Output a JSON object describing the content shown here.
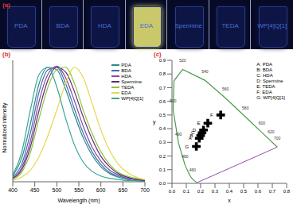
{
  "image_panel": {
    "panel_label": "(a)",
    "vials": [
      "PDA",
      "BDA",
      "HDA",
      "EDA",
      "Spermine",
      "TEDA",
      "WP[4]Q[1]"
    ],
    "colors": [
      "#0d1545",
      "#0d1545",
      "#0d1545",
      "#c9c86a",
      "#0d1545",
      "#0d1545",
      "#0d1545"
    ]
  },
  "chart_data": [
    {
      "type": "line",
      "panel_label": "(b)",
      "x_label": "Wavelength (nm)",
      "y_label": "Normalized intensity",
      "x": [
        400,
        420,
        440,
        460,
        480,
        500,
        520,
        540,
        560,
        580,
        600,
        620,
        640,
        660,
        680,
        700
      ],
      "series": [
        {
          "name": "PDA",
          "color": "#2a8a8a",
          "values": [
            0.05,
            0.2,
            0.5,
            0.85,
            0.99,
            0.97,
            0.8,
            0.58,
            0.38,
            0.23,
            0.13,
            0.07,
            0.04,
            0.02,
            0.01,
            0.01
          ]
        },
        {
          "name": "BDA",
          "color": "#3b6fb6",
          "values": [
            0.04,
            0.15,
            0.42,
            0.78,
            0.97,
            0.99,
            0.85,
            0.63,
            0.42,
            0.26,
            0.15,
            0.08,
            0.05,
            0.03,
            0.02,
            0.01
          ]
        },
        {
          "name": "HDA",
          "color": "#8a4a9c",
          "values": [
            0.03,
            0.12,
            0.35,
            0.7,
            0.93,
            1.0,
            0.9,
            0.7,
            0.48,
            0.3,
            0.18,
            0.1,
            0.06,
            0.03,
            0.02,
            0.01
          ]
        },
        {
          "name": "Spermine",
          "color": "#5b2d7a",
          "values": [
            0.03,
            0.1,
            0.3,
            0.62,
            0.88,
            0.99,
            0.95,
            0.78,
            0.56,
            0.37,
            0.22,
            0.13,
            0.07,
            0.04,
            0.02,
            0.01
          ]
        },
        {
          "name": "TEDA",
          "color": "#8dc63f",
          "values": [
            0.02,
            0.08,
            0.25,
            0.55,
            0.82,
            0.97,
            0.99,
            0.85,
            0.62,
            0.42,
            0.26,
            0.15,
            0.08,
            0.05,
            0.03,
            0.02
          ]
        },
        {
          "name": "EDA",
          "color": "#e6d84a",
          "values": [
            0.01,
            0.04,
            0.1,
            0.22,
            0.4,
            0.62,
            0.85,
            0.99,
            0.9,
            0.68,
            0.45,
            0.27,
            0.15,
            0.08,
            0.04,
            0.02
          ]
        },
        {
          "name": "WP[4]Q[1]",
          "color": "#3aa597",
          "values": [
            0.06,
            0.25,
            0.62,
            0.93,
            0.99,
            0.82,
            0.55,
            0.32,
            0.17,
            0.09,
            0.05,
            0.03,
            0.02,
            0.01,
            0.01,
            0.0
          ]
        }
      ],
      "xlim": [
        400,
        700
      ],
      "xticks": [
        400,
        450,
        500,
        550,
        600,
        650,
        700
      ],
      "ylim": [
        0,
        1.05
      ],
      "tick_labels": "x",
      "legend": "upper right"
    },
    {
      "type": "scatter",
      "panel_label": "(c)",
      "x_label": "x",
      "y_label": "y",
      "xlim": [
        0,
        0.8
      ],
      "xticks": [
        {
          "value": 0,
          "label": "0.0"
        },
        {
          "value": 0.1,
          "label": "0.1"
        },
        {
          "value": 0.2,
          "label": "0.2"
        },
        {
          "value": 0.3,
          "label": "0.3"
        },
        {
          "value": 0.4,
          "label": "0.4"
        },
        {
          "value": 0.5,
          "label": "0.5"
        },
        {
          "value": 0.6,
          "label": "0.6"
        },
        {
          "value": 0.7,
          "label": "0.7"
        },
        {
          "value": 0.8,
          "label": "0.8"
        }
      ],
      "ylim": [
        0,
        0.9
      ],
      "yticks": [
        {
          "value": 0,
          "label": "0.0"
        },
        {
          "value": 0.1,
          "label": "0.1"
        },
        {
          "value": 0.2,
          "label": "0.2"
        },
        {
          "value": 0.3,
          "label": "0.3"
        },
        {
          "value": 0.4,
          "label": "0.4"
        },
        {
          "value": 0.5,
          "label": "0.5"
        },
        {
          "value": 0.6,
          "label": "0.6"
        },
        {
          "value": 0.7,
          "label": "0.7"
        },
        {
          "value": 0.8,
          "label": "0.8"
        },
        {
          "value": 0.9,
          "label": "0.9"
        }
      ],
      "points": {
        "labels": [
          "A",
          "B",
          "C",
          "D",
          "E",
          "F",
          "G"
        ],
        "x": [
          0.19,
          0.2,
          0.21,
          0.22,
          0.25,
          0.34,
          0.17
        ],
        "y": [
          0.33,
          0.35,
          0.37,
          0.39,
          0.44,
          0.5,
          0.27
        ]
      },
      "marker": "cross",
      "locus": {
        "labels": [
          null,
          460,
          null,
          480,
          490,
          500,
          null,
          520,
          540,
          560,
          580,
          600,
          620,
          700
        ],
        "x": [
          0.1741,
          0.144,
          0.1241,
          0.0913,
          0.0454,
          0.0082,
          0.0139,
          0.0743,
          0.2296,
          0.3731,
          0.5125,
          0.627,
          0.6915,
          0.7347
        ],
        "y": [
          0.005,
          0.0297,
          0.0578,
          0.1327,
          0.295,
          0.5384,
          0.7502,
          0.8338,
          0.7543,
          0.6245,
          0.4866,
          0.3725,
          0.3083,
          0.2653
        ]
      },
      "key_text": [
        "A: PDA",
        "B: BDA",
        "C: HDA",
        "D: Spermine",
        "E: TEDA",
        "F: EDA",
        "G: WP[4]Q[1]"
      ],
      "legend": "upper right"
    }
  ]
}
